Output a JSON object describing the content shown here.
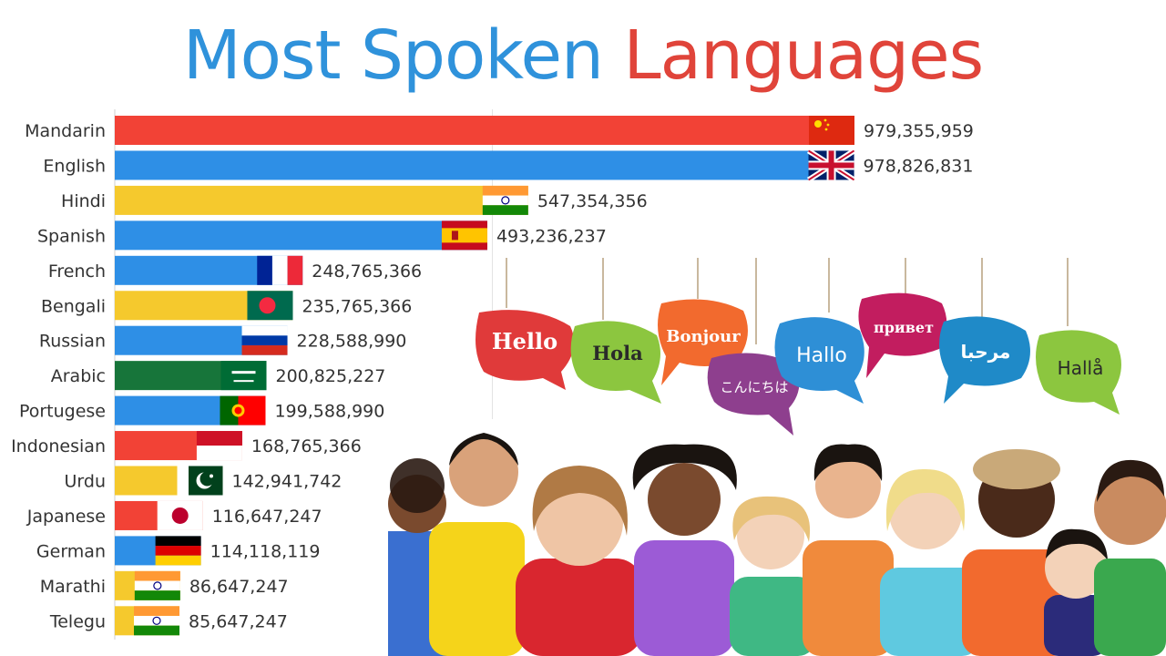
{
  "title": {
    "part1": "Most Spoken",
    "part2": "Languages",
    "color1": "#2f92db",
    "color2": "#e0443a"
  },
  "chart_data": {
    "type": "bar",
    "orientation": "horizontal",
    "title": "Most Spoken Languages",
    "xlim": [
      0,
      1000000000
    ],
    "grid": true,
    "categories": [
      "Mandarin",
      "English",
      "Hindi",
      "Spanish",
      "French",
      "Bengali",
      "Russian",
      "Arabic",
      "Portugese",
      "Indonesian",
      "Urdu",
      "Japanese",
      "German",
      "Marathi",
      "Telegu"
    ],
    "values": [
      979355959,
      978826831,
      547354356,
      493236237,
      248765366,
      235765366,
      228588990,
      200825227,
      199588990,
      168765366,
      142941742,
      116647247,
      114118119,
      86647247,
      85647247
    ],
    "value_labels": [
      "979,355,959",
      "978,826,831",
      "547,354,356",
      "493,236,237",
      "248,765,366",
      "235,765,366",
      "228,588,990",
      "200,825,227",
      "199,588,990",
      "168,765,366",
      "142,941,742",
      "116,647,247",
      "114,118,119",
      "86,647,247",
      "85,647,247"
    ],
    "bar_colors": [
      "#f24236",
      "#2e8fe6",
      "#f5c92d",
      "#2e8fe6",
      "#2e8fe6",
      "#f5c92d",
      "#2e8fe6",
      "#17753a",
      "#2e8fe6",
      "#f24236",
      "#f5c92d",
      "#f24236",
      "#2e8fe6",
      "#f5c92d",
      "#f5c92d"
    ],
    "flags": [
      "china-flag",
      "uk-flag",
      "india-flag",
      "spain-flag",
      "france-flag",
      "bangladesh-flag",
      "russia-flag",
      "saudi-flag",
      "portugal-flag",
      "indonesia-flag",
      "pakistan-flag",
      "japan-flag",
      "germany-flag",
      "india-flag",
      "india-flag"
    ]
  },
  "illustration": {
    "greetings": [
      "Hello",
      "Hola",
      "Bonjour",
      "こんにちは",
      "Hallo",
      "привет",
      "مرحبا",
      "Hallå"
    ]
  }
}
